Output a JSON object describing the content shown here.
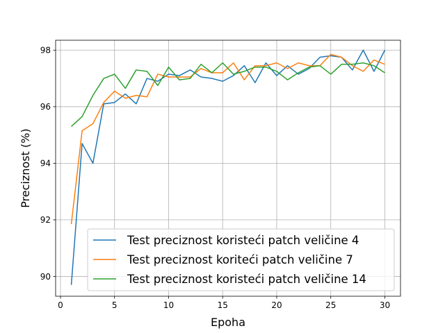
{
  "chart_data": {
    "type": "line",
    "title": "",
    "xlabel": "Epoha",
    "ylabel": "Preciznost (%)",
    "xlim": [
      -0.45,
      31.45
    ],
    "ylim": [
      89.3,
      98.35
    ],
    "xticks": [
      0,
      5,
      10,
      15,
      20,
      25,
      30
    ],
    "yticks": [
      90,
      92,
      94,
      96,
      98
    ],
    "grid": true,
    "legend_position": "lower-right",
    "x": [
      1,
      2,
      3,
      4,
      5,
      6,
      7,
      8,
      9,
      10,
      11,
      12,
      13,
      14,
      15,
      16,
      17,
      18,
      19,
      20,
      21,
      22,
      23,
      24,
      25,
      26,
      27,
      28,
      29,
      30
    ],
    "series": [
      {
        "name": "Test preciznost koristeći patch veličine 4",
        "color": "#1f77b4",
        "values": [
          89.7,
          94.7,
          94.0,
          96.1,
          96.15,
          96.45,
          96.1,
          97.0,
          96.9,
          97.15,
          97.1,
          97.3,
          97.05,
          97.0,
          96.9,
          97.1,
          97.45,
          96.85,
          97.55,
          97.1,
          97.45,
          97.15,
          97.35,
          97.75,
          97.8,
          97.75,
          97.3,
          98.0,
          97.25,
          98.0
        ]
      },
      {
        "name": "Test preciznost koriteći patch veličine 7",
        "color": "#ff7f0e",
        "values": [
          91.85,
          95.15,
          95.4,
          96.15,
          96.55,
          96.3,
          96.4,
          96.35,
          97.15,
          97.05,
          97.05,
          97.05,
          97.35,
          97.2,
          97.2,
          97.55,
          96.95,
          97.45,
          97.45,
          97.55,
          97.35,
          97.55,
          97.45,
          97.45,
          97.85,
          97.75,
          97.45,
          97.25,
          97.65,
          97.5
        ]
      },
      {
        "name": "Test preciznost koristeći patch veličine 14",
        "color": "#2ca02c",
        "values": [
          95.3,
          95.65,
          96.4,
          97.0,
          97.15,
          96.65,
          97.3,
          97.25,
          96.75,
          97.4,
          96.95,
          97.0,
          97.5,
          97.2,
          97.55,
          97.15,
          97.25,
          97.4,
          97.4,
          97.25,
          96.95,
          97.2,
          97.4,
          97.45,
          97.15,
          97.5,
          97.5,
          97.55,
          97.45,
          97.2
        ]
      }
    ]
  }
}
